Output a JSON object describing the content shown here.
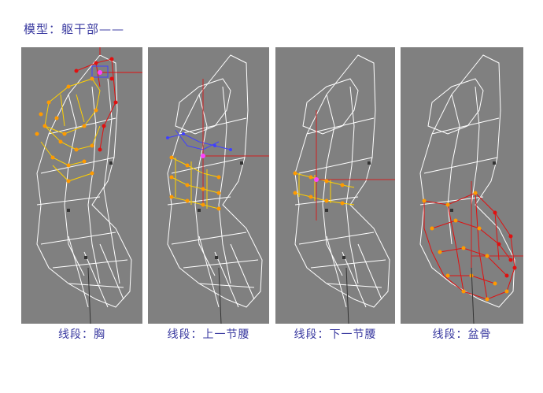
{
  "page": {
    "title": "模型：躯干部——"
  },
  "viewports": [
    {
      "caption": "线段：胸"
    },
    {
      "caption": "线段：上一节腰"
    },
    {
      "caption": "线段：下一节腰"
    },
    {
      "caption": "线段：盆骨"
    }
  ],
  "colors": {
    "viewport_bg": "#808080",
    "wire": "#ffffff",
    "selected_vertex": "#ff9a00",
    "selected_edge": "#ffd000",
    "red_vertex": "#e01010",
    "blue_edge": "#4040ff",
    "axis": "#d02020",
    "caption": "#3a3aa0"
  }
}
